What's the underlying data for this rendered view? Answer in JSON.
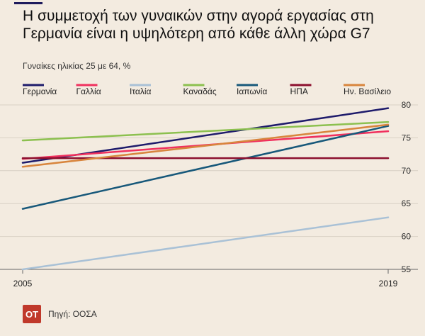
{
  "header": {
    "title": "Η συμμετοχή των γυναικών στην αγορά εργασίας στη Γερμανία είναι η υψηλότερη από κάθε άλλη χώρα G7",
    "subtitle": "Γυναίκες ηλικίας 25 με 64, %"
  },
  "footer": {
    "logo_text": "OT",
    "source": "Πηγή: ΟΟΣΑ"
  },
  "chart_data": {
    "type": "line",
    "title": "",
    "xlabel": "",
    "ylabel": "",
    "x": [
      "2005",
      "2019"
    ],
    "ylim": [
      55,
      80
    ],
    "yticks": [
      55,
      60,
      65,
      70,
      75,
      80
    ],
    "grid": true,
    "legend_position": "top",
    "series": [
      {
        "name": "Γερμανία",
        "color": "#1e1b6b",
        "values": [
          71.2,
          79.5
        ]
      },
      {
        "name": "Γαλλία",
        "color": "#f0305e",
        "values": [
          71.8,
          76.0
        ]
      },
      {
        "name": "Ιταλία",
        "color": "#a9c1d6",
        "values": [
          55.0,
          62.9
        ]
      },
      {
        "name": "Καναδάς",
        "color": "#8cc04f",
        "values": [
          74.6,
          77.4
        ]
      },
      {
        "name": "Ιαπωνία",
        "color": "#17587a",
        "values": [
          64.2,
          76.8
        ]
      },
      {
        "name": "ΗΠΑ",
        "color": "#8c0f2e",
        "values": [
          71.9,
          71.9
        ]
      },
      {
        "name": "Ην. Βασίλειο",
        "color": "#d8853d",
        "values": [
          70.6,
          77.0
        ]
      }
    ]
  }
}
